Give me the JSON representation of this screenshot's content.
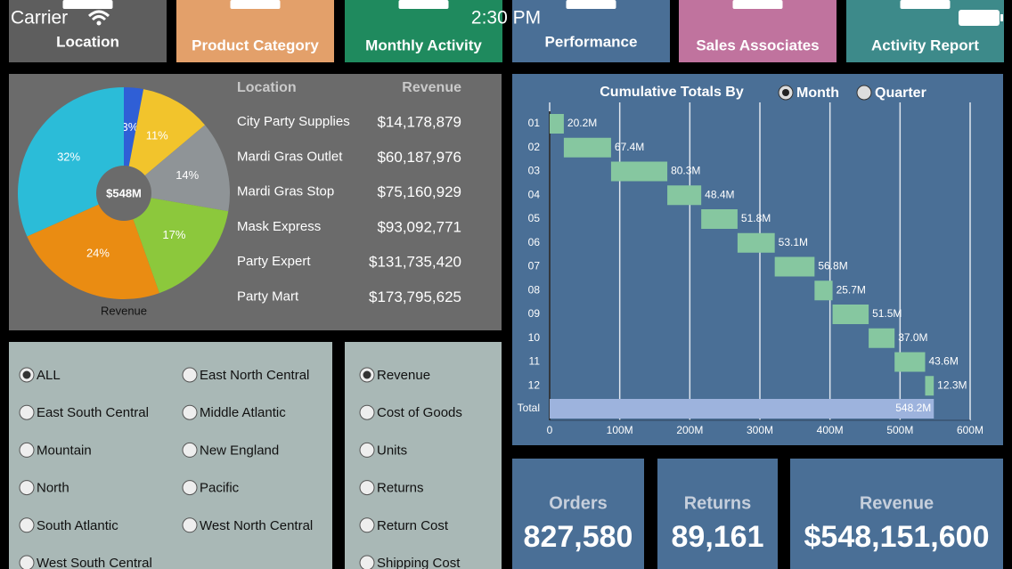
{
  "status_bar": {
    "carrier": "Carrier",
    "time": "2:30 PM"
  },
  "nav": [
    "Location",
    "Product Category",
    "Monthly Activity",
    "Performance",
    "Sales Associates",
    "Activity Report"
  ],
  "revenue_table": {
    "headers": [
      "Location",
      "Revenue"
    ],
    "rows": [
      [
        "City Party Supplies",
        "$14,178,879"
      ],
      [
        "Mardi Gras Outlet",
        "$60,187,976"
      ],
      [
        "Mardi Gras Stop",
        "$75,160,929"
      ],
      [
        "Mask Express",
        "$93,092,771"
      ],
      [
        "Party Expert",
        "$131,735,420"
      ],
      [
        "Party Mart",
        "$173,795,625"
      ]
    ]
  },
  "chart_data": [
    {
      "type": "pie",
      "title": "Revenue",
      "center_label": "$548M",
      "values": [
        3,
        11,
        14,
        17,
        24,
        32
      ],
      "value_labels": [
        "3%",
        "11%",
        "14%",
        "17%",
        "24%",
        "32%"
      ],
      "colors": [
        "#2f5fd6",
        "#f2c42c",
        "#8f9497",
        "#8cc83c",
        "#ea8c12",
        "#2bbcd8"
      ]
    },
    {
      "type": "waterfall",
      "title": "Cumulative Totals By",
      "period_options": [
        "Month",
        "Quarter"
      ],
      "period_selected": 0,
      "categories": [
        "01",
        "02",
        "03",
        "04",
        "05",
        "06",
        "07",
        "08",
        "09",
        "10",
        "11",
        "12",
        "Total"
      ],
      "values": [
        20.2,
        67.4,
        80.3,
        48.4,
        51.8,
        53.1,
        56.8,
        25.7,
        51.5,
        37.0,
        43.6,
        12.3,
        548.2
      ],
      "value_labels": [
        "20.2M",
        "67.4M",
        "80.3M",
        "48.4M",
        "51.8M",
        "53.1M",
        "56.8M",
        "25.7M",
        "51.5M",
        "37.0M",
        "43.6M",
        "12.3M",
        "548.2M"
      ],
      "color": "#86c7a0",
      "total_color": "#9db3dd",
      "xlim": [
        0,
        600
      ],
      "xticks": [
        0,
        {
          "value": 100,
          "label": "100M"
        },
        {
          "value": 200,
          "label": "200M"
        },
        {
          "value": 300,
          "label": "300M"
        },
        {
          "value": 400,
          "label": "400M"
        },
        {
          "value": 500,
          "label": "500M"
        },
        {
          "value": 600,
          "label": "600M"
        }
      ],
      "grid": true
    }
  ],
  "regions": {
    "options": [
      "ALL",
      "East North Central",
      "East South Central",
      "Middle Atlantic",
      "Mountain",
      "New England",
      "North",
      "Pacific",
      "South Atlantic",
      "West North Central",
      "West South Central"
    ],
    "selected": 0
  },
  "measures": {
    "options": [
      "Revenue",
      "Cost of Goods",
      "Units",
      "Returns",
      "Return Cost",
      "Shipping Cost"
    ],
    "selected": 0
  },
  "kpis": [
    {
      "label": "Orders",
      "value": "827,580"
    },
    {
      "label": "Returns",
      "value": "89,161"
    },
    {
      "label": "Revenue",
      "value": "$548,151,600"
    }
  ]
}
